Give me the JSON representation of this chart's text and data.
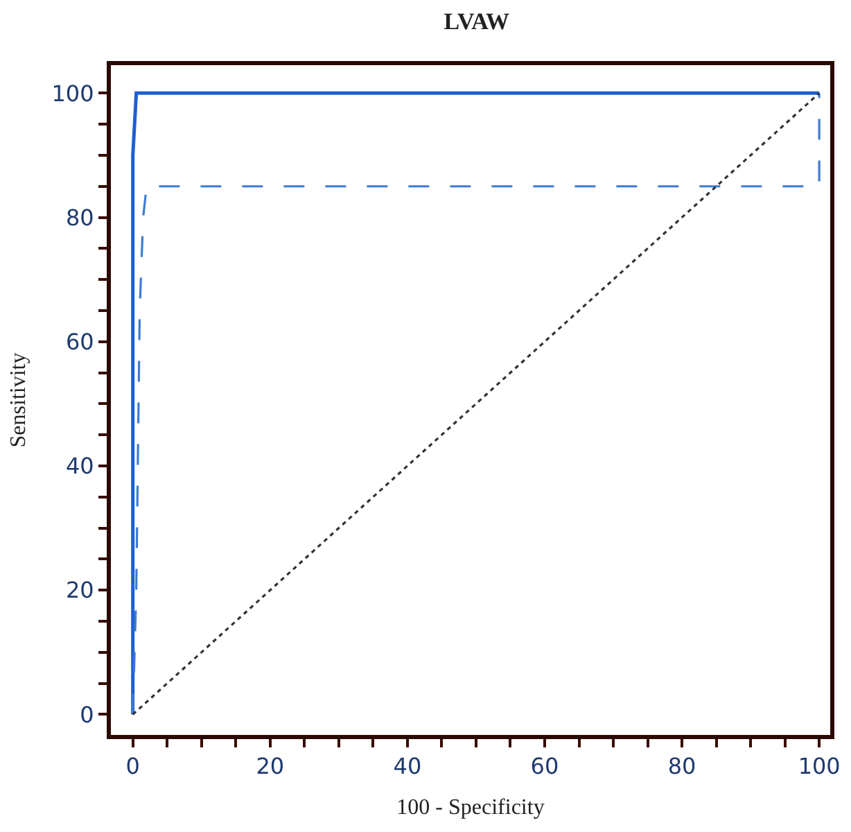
{
  "chart_data": {
    "type": "line",
    "title": "LVAW",
    "xlabel": "100 - Specificity",
    "ylabel": "Sensitivity",
    "x": [
      0,
      0,
      0.5,
      100
    ],
    "series": [
      {
        "color": "#1f5fd0",
        "line_style": "solid",
        "values": [
          0,
          90,
          100,
          100
        ]
      },
      {
        "color": "#3f7ad0",
        "line_style": "dashed",
        "x": [
          0,
          0.5,
          1,
          1.5,
          2,
          100,
          100
        ],
        "values": [
          0,
          20,
          65,
          80,
          85,
          85,
          100
        ]
      },
      {
        "color": "#333333",
        "line_style": "dotted",
        "x": [
          0,
          100
        ],
        "values": [
          0,
          100
        ]
      }
    ],
    "xlim": [
      -3.2,
      101.6
    ],
    "ylim": [
      -3.3,
      104.5
    ],
    "xticks": [
      0,
      {
        "value": 5,
        "label": null
      },
      {
        "value": 10,
        "label": null
      },
      {
        "value": 15,
        "label": null
      },
      20,
      {
        "value": 25,
        "label": null
      },
      {
        "value": 30,
        "label": null
      },
      {
        "value": 35,
        "label": null
      },
      40,
      {
        "value": 45,
        "label": null
      },
      {
        "value": 50,
        "label": null
      },
      {
        "value": 55,
        "label": null
      },
      60,
      {
        "value": 65,
        "label": null
      },
      {
        "value": 70,
        "label": null
      },
      {
        "value": 75,
        "label": null
      },
      80,
      {
        "value": 85,
        "label": null
      },
      {
        "value": 90,
        "label": null
      },
      {
        "value": 95,
        "label": null
      },
      100
    ],
    "yticks": [
      0,
      {
        "value": 5,
        "label": null
      },
      {
        "value": 10,
        "label": null
      },
      {
        "value": 15,
        "label": null
      },
      20,
      {
        "value": 25,
        "label": null
      },
      {
        "value": 30,
        "label": null
      },
      {
        "value": 35,
        "label": null
      },
      40,
      {
        "value": 45,
        "label": null
      },
      {
        "value": 50,
        "label": null
      },
      {
        "value": 55,
        "label": null
      },
      60,
      {
        "value": 65,
        "label": null
      },
      {
        "value": 70,
        "label": null
      },
      {
        "value": 75,
        "label": null
      },
      80,
      {
        "value": 85,
        "label": null
      },
      {
        "value": 90,
        "label": null
      },
      {
        "value": 95,
        "label": null
      },
      100
    ],
    "marker": "none"
  }
}
